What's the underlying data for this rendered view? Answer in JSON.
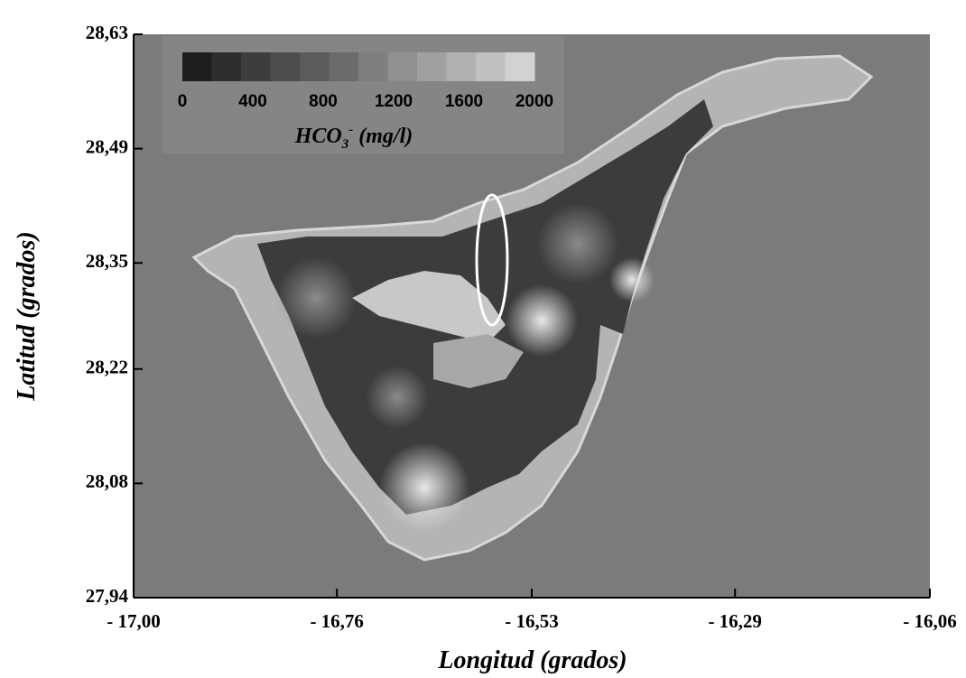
{
  "chart_data": {
    "type": "map",
    "xlabel": "Longitud (grados)",
    "ylabel": "Latitud (grados)",
    "xlim": [
      -17.0,
      -16.06
    ],
    "ylim": [
      27.94,
      28.63
    ],
    "xticks": [
      {
        "value": -17.0,
        "label": "- 17,00"
      },
      {
        "value": -16.76,
        "label": "- 16,76"
      },
      {
        "value": -16.53,
        "label": "- 16,53"
      },
      {
        "value": -16.29,
        "label": "- 16,29"
      },
      {
        "value": -16.06,
        "label": "- 16,06"
      }
    ],
    "yticks": [
      {
        "value": 27.94,
        "label": "27,94"
      },
      {
        "value": 28.08,
        "label": "28,08"
      },
      {
        "value": 28.22,
        "label": "28,22"
      },
      {
        "value": 28.35,
        "label": "28,35"
      },
      {
        "value": 28.49,
        "label": "28,49"
      },
      {
        "value": 28.63,
        "label": "28,63"
      }
    ],
    "background": "#7b7b7b",
    "colorbar": {
      "lim": [
        0,
        2000
      ],
      "ticks": [
        0,
        400,
        800,
        1200,
        1600,
        2000
      ],
      "colors": [
        "#1e1e1e",
        "#2e2e2e",
        "#3d3d3d",
        "#4c4c4c",
        "#5b5b5b",
        "#6a6a6a",
        "#7e7e7e",
        "#909090",
        "#a0a0a0",
        "#b0b0b0",
        "#c0c0c0",
        "#d2d2d2"
      ],
      "label_parts": [
        "HCO",
        "3",
        "-",
        " (mg/l)"
      ]
    }
  }
}
